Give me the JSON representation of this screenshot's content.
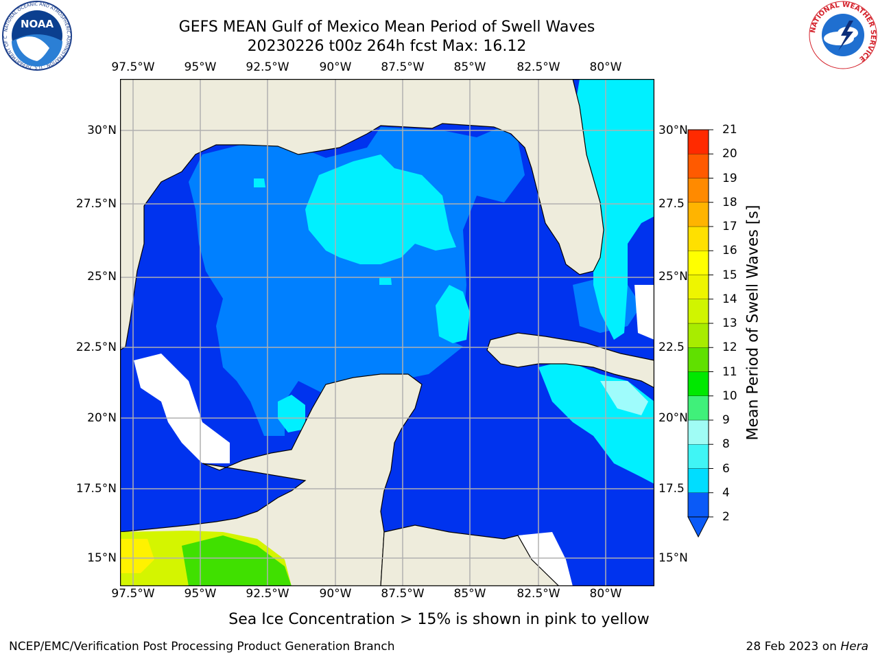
{
  "title_line1": "GEFS MEAN Gulf of Mexico Mean Period of Swell Waves",
  "title_line2": "20230226 t00z 264h fcst   Max: 16.12",
  "lon_labels": [
    "97.5°W",
    "95°W",
    "92.5°W",
    "90°W",
    "87.5°W",
    "85°W",
    "82.5°W",
    "80°W"
  ],
  "lat_labels_left": [
    "30°N",
    "27.5°N",
    "25°N",
    "22.5°N",
    "20°N",
    "17.5°N",
    "15°N"
  ],
  "lat_labels_right": [
    "30°N",
    "27.5",
    "25°N",
    "22.5",
    "20°N",
    "17.5",
    "15°N"
  ],
  "colorbar": {
    "title": "Mean Period of Swell Waves [s]",
    "tick_labels": [
      "2",
      "4",
      "6",
      "8",
      "9",
      "10",
      "11",
      "12",
      "13",
      "14",
      "15",
      "16",
      "17",
      "18",
      "19",
      "20",
      "21"
    ],
    "colors": [
      "#0a5af7",
      "#00ddff",
      "#40f5f5",
      "#a0fcf5",
      "#40f07a",
      "#00e800",
      "#60e000",
      "#a8ec00",
      "#d0f500",
      "#eef500",
      "#ffff00",
      "#ffe000",
      "#ffb400",
      "#ff8a00",
      "#ff5a00",
      "#ff2a00",
      "#ff0000"
    ]
  },
  "map_colors": {
    "land": "#eeecdc",
    "deep_blue": "#0033ee",
    "mid_blue": "#0080ff",
    "cyan": "#00f0ff",
    "light_cyan": "#9ffcfc",
    "missing": "#ffffff"
  },
  "caption": "Sea Ice Concentration > 15% is shown in pink to yellow",
  "footer_left": "NCEP/EMC/Verification Post Processing Product Generation Branch",
  "footer_right_date": "28 Feb 2023 on ",
  "footer_right_host": "Hera",
  "logos": {
    "noaa_text": "NOAA",
    "noaa_ring": "NATIONAL OCEANIC AND ATMOSPHERIC ADMINISTRATION · U.S. DEPARTMENT OF COMMERCE",
    "nws_ring": "NATIONAL WEATHER SERVICE"
  }
}
